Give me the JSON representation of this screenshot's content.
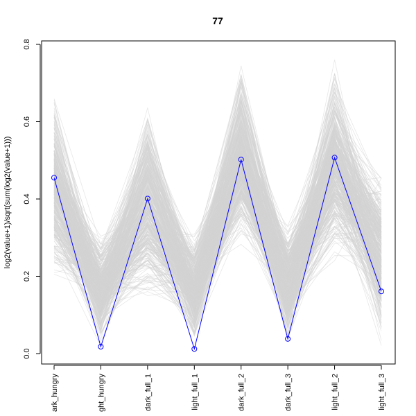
{
  "chart_data": {
    "type": "line",
    "title": "77",
    "xlabel": "",
    "ylabel": "log2(value+1)/sqrt(sum(log2(value+1)))",
    "categories": [
      "dark_hungry",
      "light_hungry",
      "dark_full_1",
      "light_full_1",
      "dark_full_2",
      "dark_full_3",
      "light_full_2",
      "light_full_3"
    ],
    "category_labels_visible": [
      "ark_hungry",
      "ght_hungry",
      "dark_full_1",
      "light_full_1",
      "dark_full_2",
      "dark_full_3",
      "light_full_2",
      "light_full_3"
    ],
    "ylim": [
      -0.03,
      0.81
    ],
    "yticks": [
      0.0,
      0.2,
      0.4,
      0.6,
      0.8
    ],
    "ytick_labels": [
      "0.0",
      "0.2",
      "0.4",
      "0.6",
      "0.8"
    ],
    "grid": false,
    "legend": "none",
    "background_band": {
      "description_color": "#d3d3d3",
      "min": [
        0.15,
        0.0,
        0.1,
        0.0,
        0.25,
        0.0,
        0.2,
        0.0
      ],
      "max": [
        0.7,
        0.32,
        0.67,
        0.33,
        0.77,
        0.36,
        0.78,
        0.51
      ],
      "line_count": 400
    },
    "series": [
      {
        "values": [
          0.455,
          0.018,
          0.401,
          0.012,
          0.502,
          0.038,
          0.507,
          0.161
        ],
        "color": "#0000ff",
        "marker": "open-circle"
      }
    ]
  }
}
